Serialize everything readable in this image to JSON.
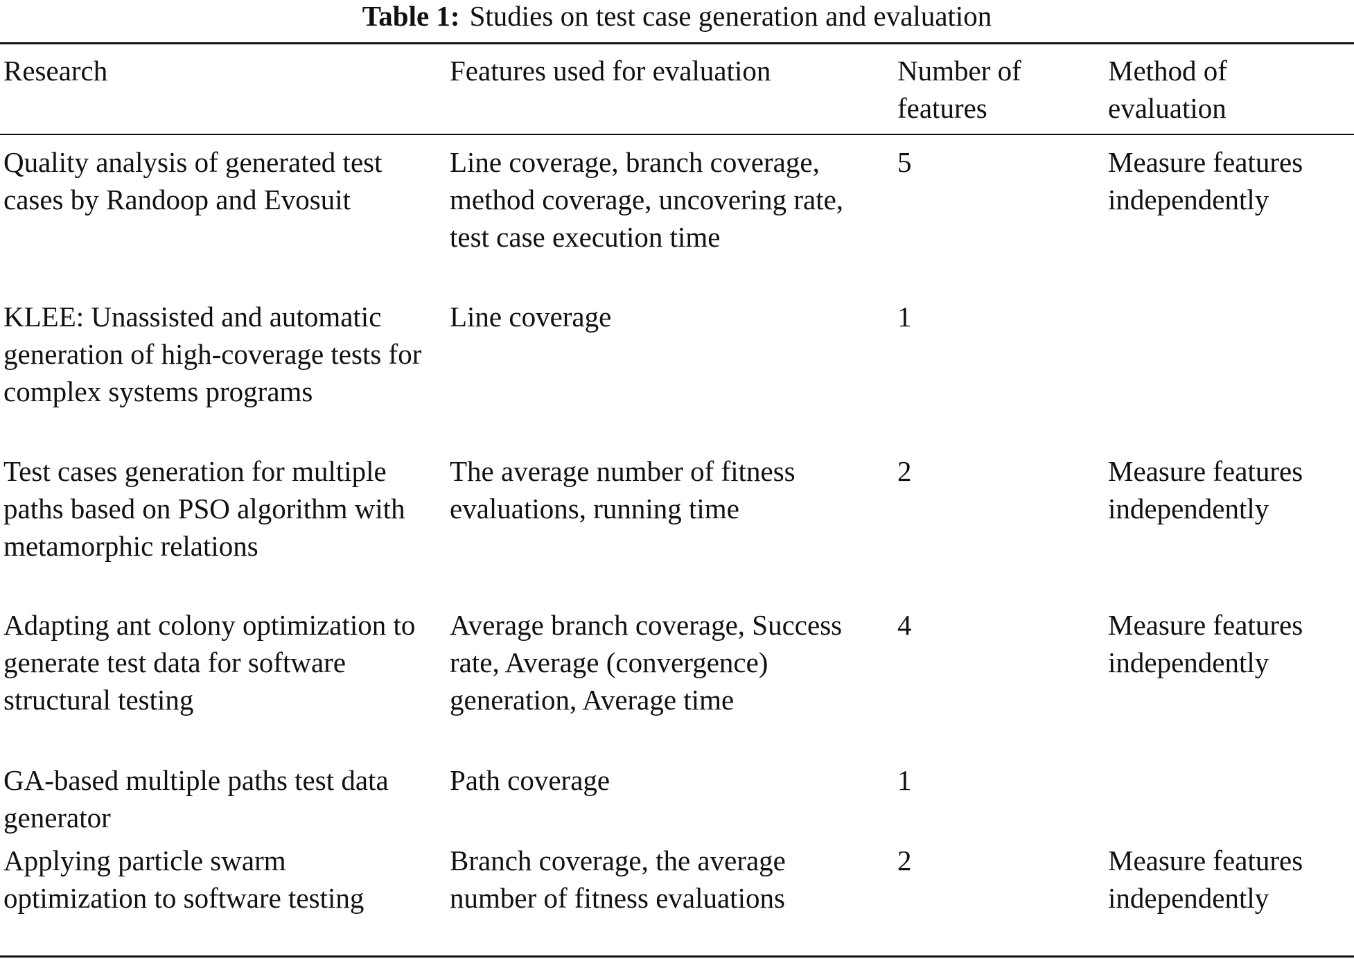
{
  "table": {
    "title_label": "Table 1:",
    "title": "Studies on test case generation and evaluation",
    "headers": [
      "Research",
      "Features used for evaluation",
      "Number of features",
      "Method of evaluation"
    ],
    "rows": [
      [
        "Quality analysis of generated test cases by Randoop and Evosuit",
        "Line coverage, branch coverage, method coverage, uncovering rate, test case execution time",
        5,
        "Measure features independently"
      ],
      [
        "KLEE: Unassisted and automatic generation of high-coverage tests for complex systems programs",
        "Line coverage",
        1,
        null
      ],
      [
        "Test cases generation for multiple paths based on PSO algorithm with metamorphic relations",
        "The average number of fitness evaluations, running time",
        2,
        "Measure features independently"
      ],
      [
        "Adapting ant colony optimization to generate test data for software structural testing",
        "Average branch coverage, Success rate, Average (convergence) generation, Average time",
        4,
        "Measure features independently"
      ],
      [
        "GA-based multiple paths test data generator",
        "Path coverage",
        1,
        null
      ],
      [
        "Applying particle swarm optimization to software testing",
        "Branch coverage, the average number of fitness evaluations",
        2,
        "Measure features independently"
      ]
    ]
  }
}
